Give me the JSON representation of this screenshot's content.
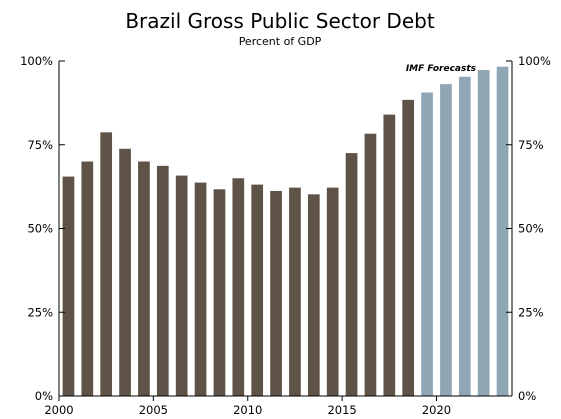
{
  "chart_data": {
    "type": "bar",
    "title": "Brazil Gross Public Sector Debt",
    "subtitle": "Percent of GDP",
    "xlabel": "",
    "ylabel": "",
    "ylim": [
      0,
      100
    ],
    "xlim": [
      2000,
      2024
    ],
    "y_ticks": [
      "0%",
      "25%",
      "50%",
      "75%",
      "100%"
    ],
    "y_tick_values": [
      0,
      25,
      50,
      75,
      100
    ],
    "x_ticks": [
      "2000",
      "2005",
      "2010",
      "2015",
      "2020"
    ],
    "x_tick_values": [
      2000,
      2005,
      2010,
      2015,
      2020
    ],
    "grid": false,
    "annotation": "IMF Forecasts",
    "colors": {
      "historical": "#5f5246",
      "forecast": "#8fa6b5",
      "axis": "#000000"
    },
    "series": [
      {
        "role": "historical",
        "x": [
          2000,
          2001,
          2002,
          2003,
          2004,
          2005,
          2006,
          2007,
          2008,
          2009,
          2010,
          2011,
          2012,
          2013,
          2014,
          2015,
          2016,
          2017,
          2018
        ],
        "values": [
          65.5,
          70,
          78.7,
          73.8,
          70,
          68.7,
          65.8,
          63.7,
          61.7,
          65,
          63.1,
          61.2,
          62.2,
          60.2,
          62.2,
          72.5,
          78.3,
          84,
          88.4
        ]
      },
      {
        "role": "forecast",
        "x": [
          2019,
          2020,
          2021,
          2022,
          2023
        ],
        "values": [
          90.6,
          93.1,
          95.3,
          97.3,
          98.3
        ]
      }
    ]
  }
}
